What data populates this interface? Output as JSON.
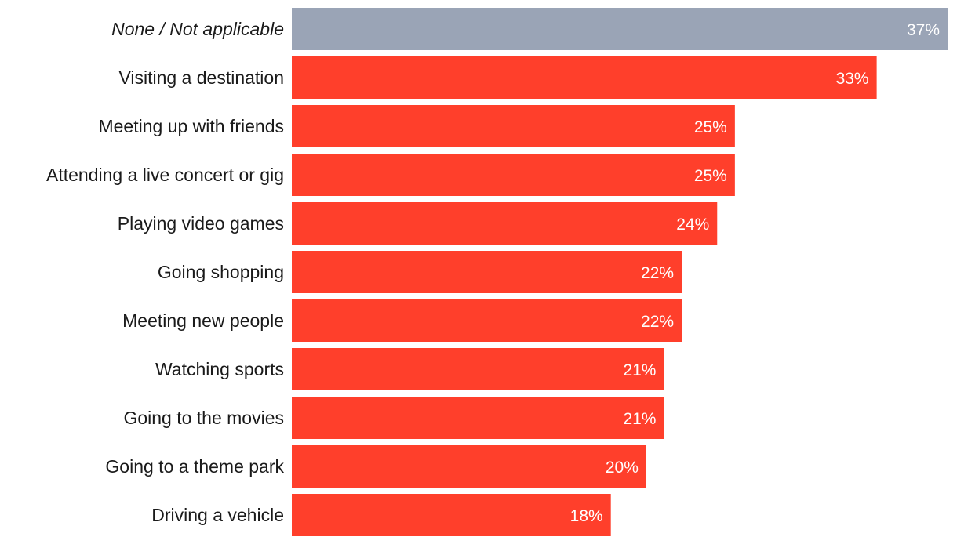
{
  "chart_data": {
    "type": "bar",
    "orientation": "horizontal",
    "title": "",
    "xlabel": "",
    "ylabel": "",
    "xlim": [
      0,
      37
    ],
    "categories": [
      "None / Not applicable",
      "Visiting a destination",
      "Meeting up with friends",
      "Attending a live concert or gig",
      "Playing video games",
      "Going shopping",
      "Meeting new people",
      "Watching sports",
      "Going to the movies",
      "Going to a theme park",
      "Driving a vehicle"
    ],
    "values": [
      37,
      33,
      25,
      25,
      24,
      22,
      22,
      21,
      21,
      20,
      18
    ],
    "value_labels": [
      "37%",
      "33%",
      "25%",
      "25%",
      "24%",
      "22%",
      "22%",
      "21%",
      "21%",
      "20%",
      "18%"
    ],
    "highlight_index": 0,
    "colors": {
      "highlight": "#9aa4b6",
      "bar": "#ff3f2b",
      "label_text": "#1a1a1a",
      "value_text": "#ffffff"
    },
    "grid": false,
    "legend": "none"
  }
}
